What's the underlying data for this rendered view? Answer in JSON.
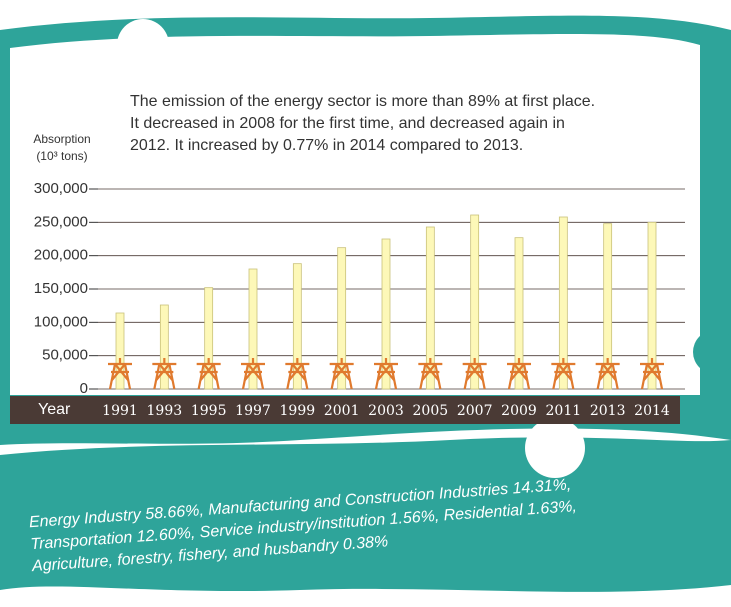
{
  "chart_data": {
    "type": "bar",
    "annotation": [
      "The emission of the energy sector is more than 89% at first place.",
      "It decreased in 2008 for the first time, and decreased again in",
      "2012. It increased by 0.77% in 2014 compared to 2013."
    ],
    "y_label": [
      "Absorption",
      "(10³ tons)"
    ],
    "x_label": "Year",
    "categories": [
      "1991",
      "1993",
      "1995",
      "1997",
      "1999",
      "2001",
      "2003",
      "2005",
      "2007",
      "2009",
      "2011",
      "2013",
      "2014"
    ],
    "values": [
      114000,
      126000,
      152000,
      180000,
      188000,
      212000,
      225000,
      243000,
      261000,
      227000,
      258000,
      248000,
      250000
    ],
    "color": "#fdf8b8",
    "ylim": [
      0,
      300000
    ],
    "yticks": [
      0,
      {
        "value": 50000,
        "label": "50,000"
      },
      {
        "value": 100000,
        "label": "100,000"
      },
      {
        "value": 150000,
        "label": "150,000"
      },
      {
        "value": 200000,
        "label": "200,000"
      },
      {
        "value": 250000,
        "label": "250,000"
      },
      {
        "value": 300000,
        "label": "300,000"
      }
    ],
    "grid": true,
    "footnote": [
      "Energy Industry 58.66%, Manufacturing and Construction Industries 14.31%,",
      "Transportation 12.60%, Service industry/institution 1.56%, Residential 1.63%,",
      "Agriculture, forestry, fishery, and husbandry  0.38%"
    ]
  }
}
